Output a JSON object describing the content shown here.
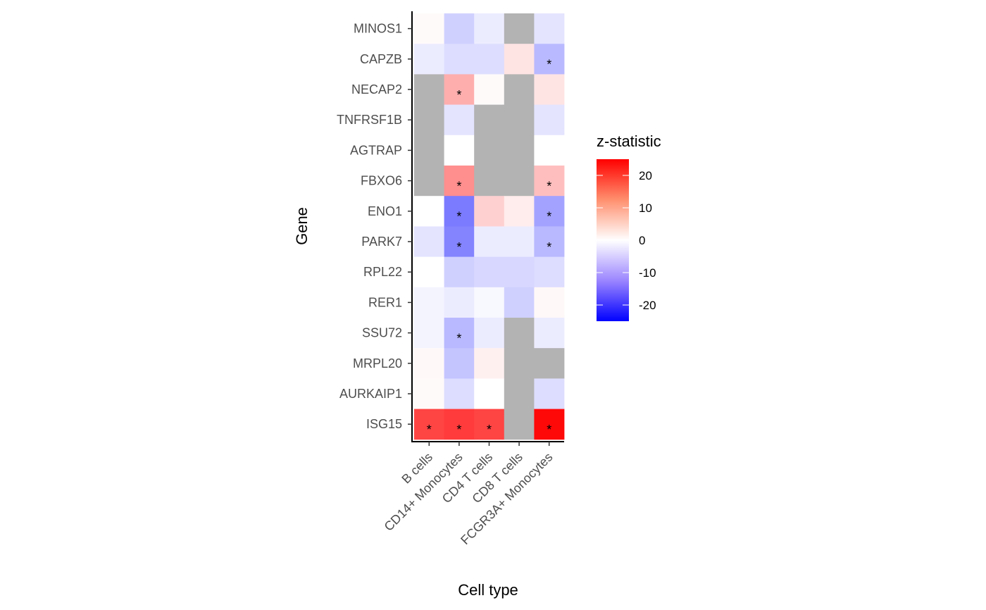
{
  "chart_data": {
    "type": "heatmap",
    "xlabel": "Cell type",
    "ylabel": "Gene",
    "x_categories": [
      "B cells",
      "CD14+ Monocytes",
      "CD4 T cells",
      "CD8 T cells",
      "FCGR3A+ Monocytes"
    ],
    "y_categories": [
      "MINOS1",
      "CAPZB",
      "NECAP2",
      "TNFRSF1B",
      "AGTRAP",
      "FBXO6",
      "ENO1",
      "PARK7",
      "RPL22",
      "RER1",
      "SSU72",
      "MRPL20",
      "AURKAIP1",
      "ISG15"
    ],
    "values": [
      [
        0.2,
        -3,
        -1,
        null,
        -1.5
      ],
      [
        -1,
        -2,
        -2,
        1.5,
        -5
      ],
      [
        null,
        6,
        0.2,
        null,
        1.5
      ],
      [
        null,
        -1.5,
        null,
        null,
        -1.5
      ],
      [
        null,
        0,
        null,
        null,
        0
      ],
      [
        null,
        9,
        null,
        null,
        4.5
      ],
      [
        0,
        -11,
        3,
        1,
        -7
      ],
      [
        -1.5,
        -10,
        -1,
        -1,
        -5
      ],
      [
        0,
        -3,
        -2.5,
        -2.5,
        -2
      ],
      [
        -0.5,
        -1,
        -0.3,
        -3,
        0.3
      ],
      [
        -0.5,
        -5,
        -1,
        null,
        -1
      ],
      [
        0.3,
        -4,
        0.7,
        null,
        null
      ],
      [
        0.2,
        -2,
        0,
        null,
        -2
      ],
      [
        17,
        18,
        17,
        null,
        24
      ]
    ],
    "significant": [
      [
        false,
        false,
        false,
        false,
        false
      ],
      [
        false,
        false,
        false,
        false,
        true
      ],
      [
        false,
        true,
        false,
        false,
        false
      ],
      [
        false,
        false,
        false,
        false,
        false
      ],
      [
        false,
        false,
        false,
        false,
        false
      ],
      [
        false,
        true,
        false,
        false,
        true
      ],
      [
        false,
        true,
        false,
        false,
        true
      ],
      [
        false,
        true,
        false,
        false,
        true
      ],
      [
        false,
        false,
        false,
        false,
        false
      ],
      [
        false,
        false,
        false,
        false,
        false
      ],
      [
        false,
        true,
        false,
        false,
        false
      ],
      [
        false,
        false,
        false,
        false,
        false
      ],
      [
        false,
        false,
        false,
        false,
        false
      ],
      [
        true,
        true,
        true,
        false,
        true
      ]
    ],
    "significance_marker": "*",
    "legend": {
      "title": "z-statistic",
      "ticks": [
        20,
        10,
        0,
        -10,
        -20
      ],
      "range": [
        -25,
        25
      ],
      "placement": "right"
    },
    "colors": {
      "low": "#0000ff",
      "mid": "#ffffff",
      "high": "#ff0000",
      "na": "#b3b3b3"
    }
  }
}
